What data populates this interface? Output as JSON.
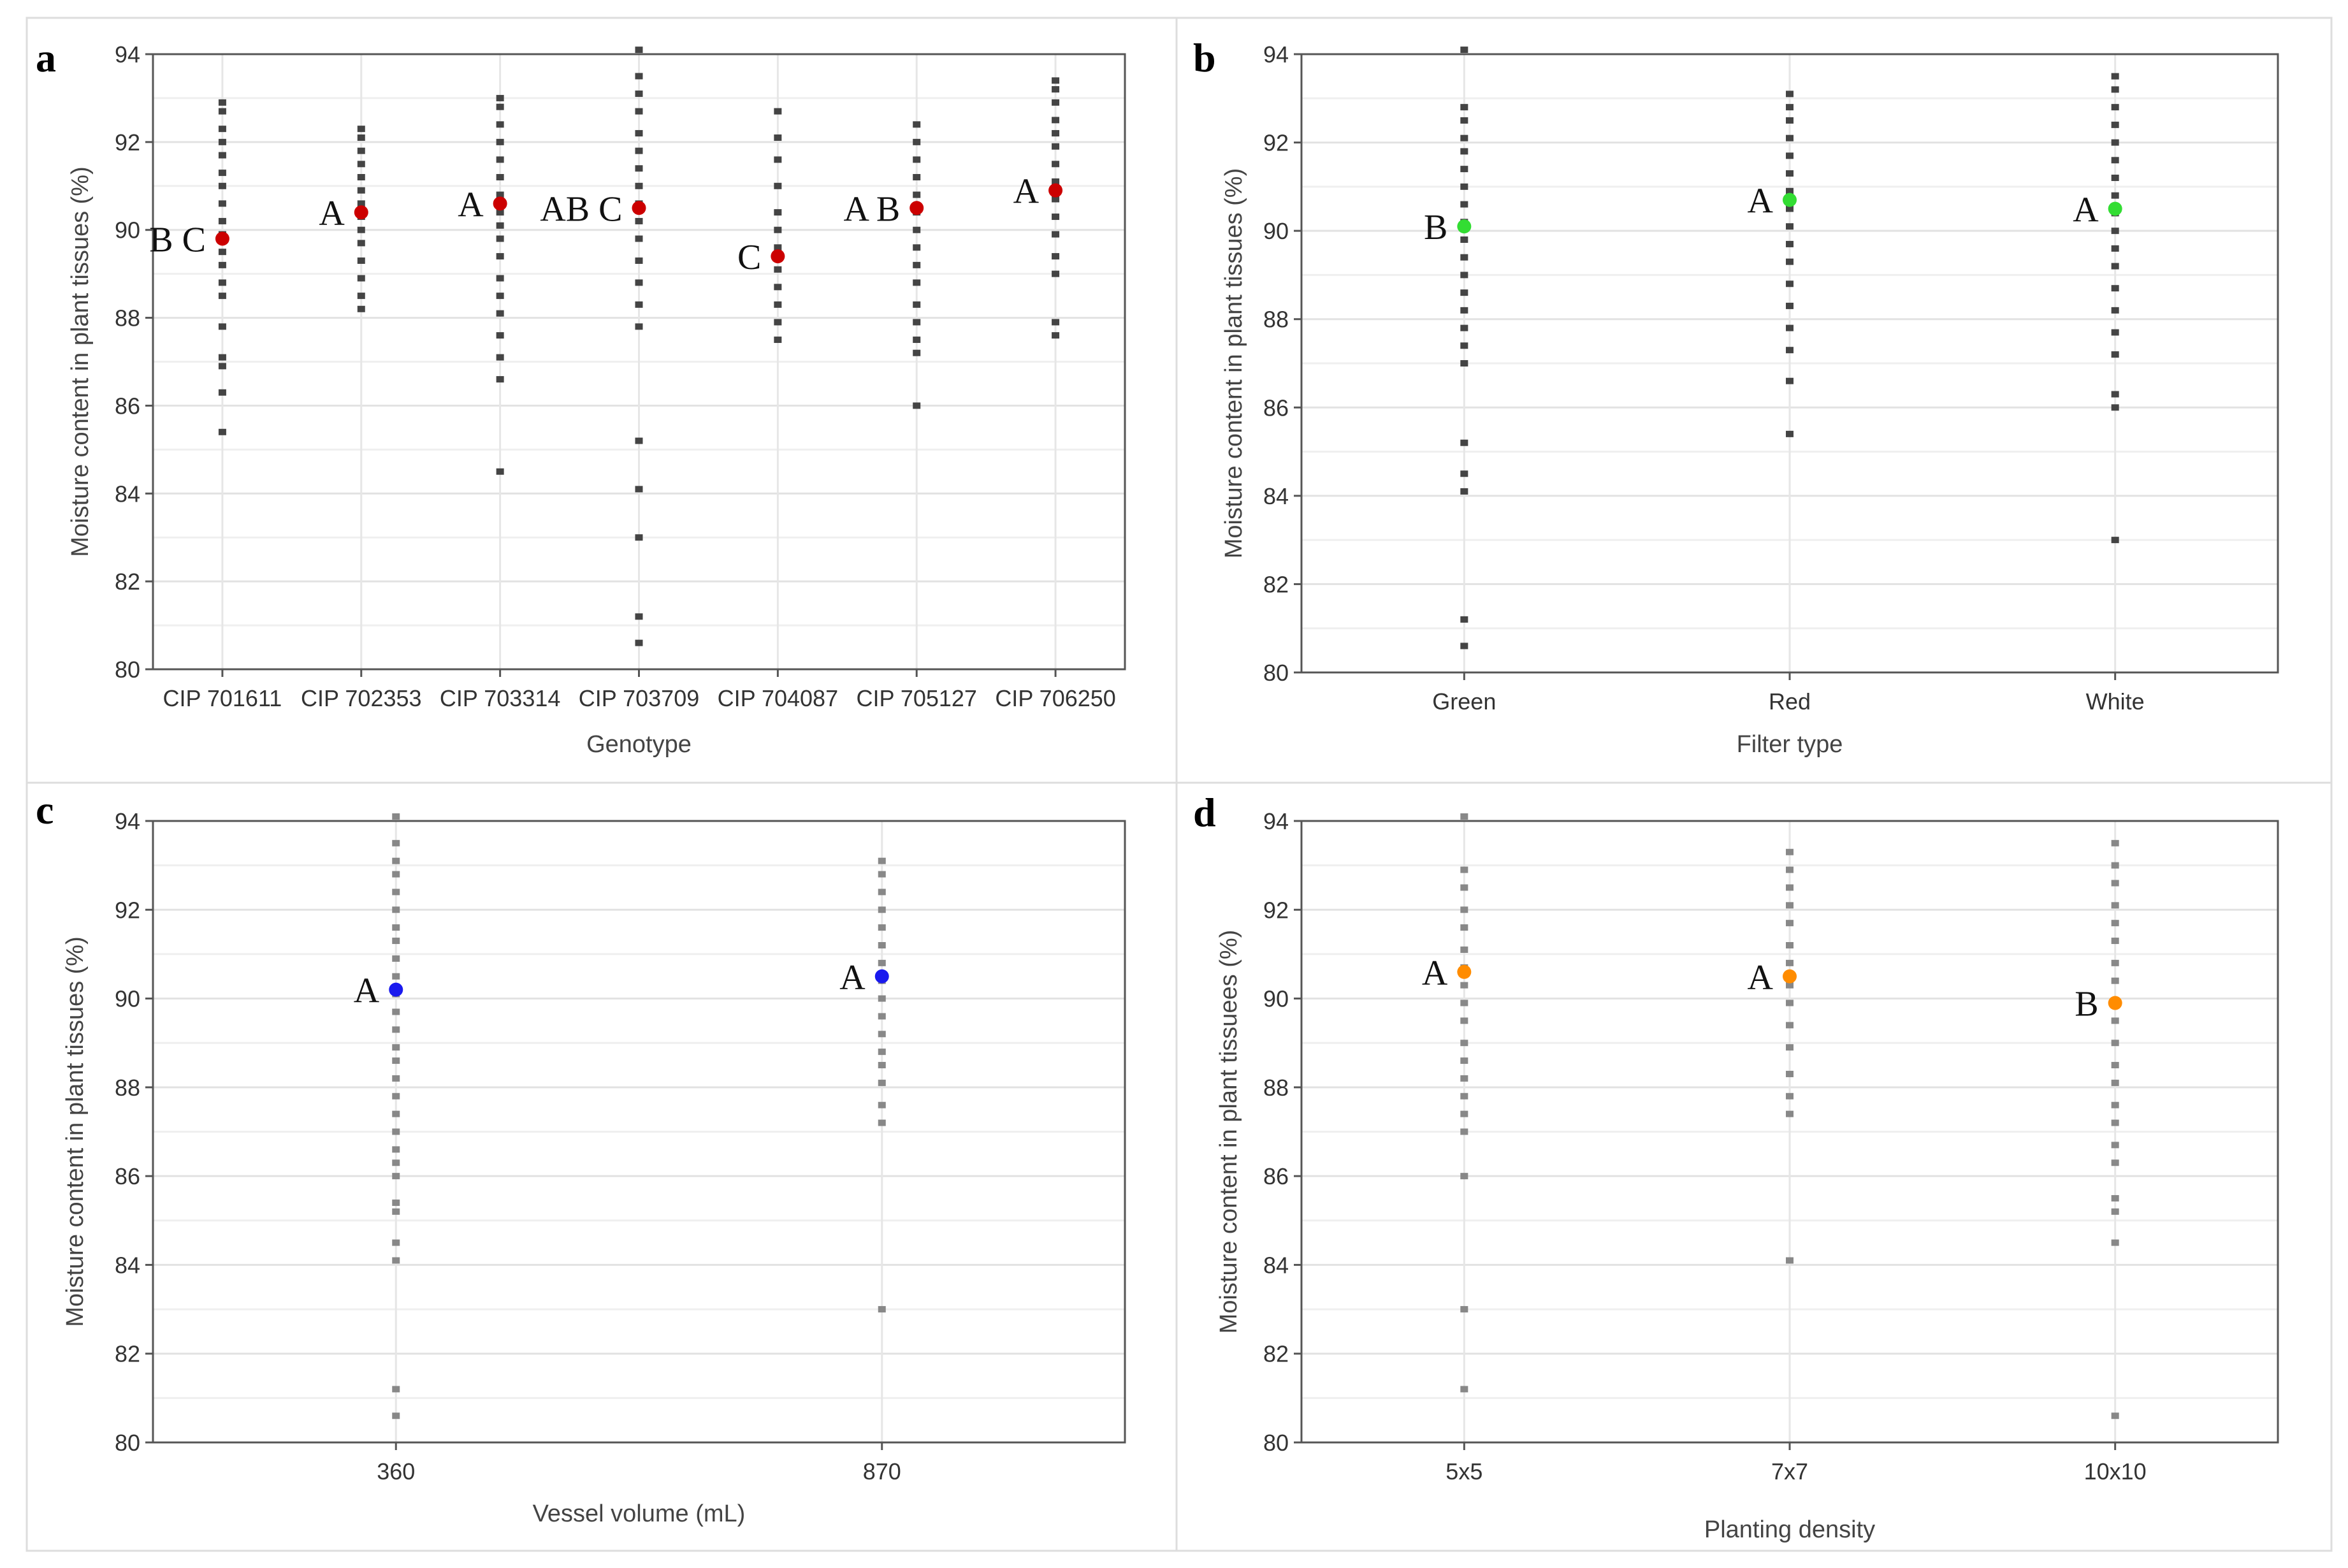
{
  "chart_data": [
    {
      "type": "scatter",
      "panel": "a",
      "xlabel": "Genotype",
      "ylabel": "Moisture content in plant tissues (%)",
      "ylim": [
        80,
        94
      ],
      "yticks": [
        80,
        82,
        84,
        86,
        88,
        90,
        92,
        94
      ],
      "grid": true,
      "mean_color": "#cc0000",
      "point_color": "#444444",
      "categories": [
        "CIP 701611",
        "CIP 702353",
        "CIP 703314",
        "CIP 703709",
        "CIP 704087",
        "CIP 705127",
        "CIP 706250"
      ],
      "means": [
        89.8,
        90.4,
        90.6,
        90.5,
        89.4,
        90.5,
        90.9
      ],
      "letters": [
        "B C",
        "A",
        "A",
        "AB C",
        "C",
        "A B",
        "A"
      ],
      "points": [
        [
          85.4,
          86.3,
          86.9,
          87.1,
          87.8,
          88.5,
          88.8,
          89.2,
          89.5,
          89.9,
          90.2,
          90.6,
          91.0,
          91.3,
          91.7,
          92.0,
          92.3,
          92.7,
          92.9
        ],
        [
          88.2,
          88.5,
          88.9,
          89.3,
          89.7,
          90.0,
          90.3,
          90.6,
          90.9,
          91.2,
          91.5,
          91.8,
          92.1,
          92.3
        ],
        [
          84.5,
          86.6,
          87.1,
          87.6,
          88.1,
          88.5,
          88.9,
          89.4,
          89.8,
          90.1,
          90.4,
          90.8,
          91.2,
          91.6,
          92.0,
          92.4,
          92.8,
          93.0
        ],
        [
          80.6,
          81.2,
          83.0,
          84.1,
          85.2,
          87.8,
          88.3,
          88.8,
          89.3,
          89.8,
          90.2,
          90.6,
          91.0,
          91.4,
          91.8,
          92.2,
          92.7,
          93.1,
          93.5,
          94.1
        ],
        [
          87.5,
          87.9,
          88.3,
          88.7,
          89.1,
          89.6,
          90.0,
          90.4,
          91.0,
          91.6,
          92.1,
          92.7
        ],
        [
          86.0,
          87.2,
          87.5,
          87.9,
          88.3,
          88.8,
          89.2,
          89.6,
          90.0,
          90.4,
          90.8,
          91.2,
          91.6,
          92.0,
          92.4
        ],
        [
          87.6,
          87.9,
          89.0,
          89.4,
          89.9,
          90.3,
          90.7,
          91.1,
          91.5,
          91.9,
          92.2,
          92.5,
          92.9,
          93.2,
          93.4
        ]
      ]
    },
    {
      "type": "scatter",
      "panel": "b",
      "xlabel": "Filter type",
      "ylabel": "Moisture content in plant tissues (%)",
      "ylim": [
        80,
        94
      ],
      "yticks": [
        80,
        82,
        84,
        86,
        88,
        90,
        92,
        94
      ],
      "grid": true,
      "mean_color": "#33dd33",
      "point_color": "#444444",
      "categories": [
        "Green",
        "Red",
        "White"
      ],
      "means": [
        90.1,
        90.7,
        90.5
      ],
      "letters": [
        "B",
        "A",
        "A"
      ],
      "points": [
        [
          80.6,
          81.2,
          84.1,
          84.5,
          85.2,
          87.0,
          87.4,
          87.8,
          88.2,
          88.6,
          89.0,
          89.4,
          89.8,
          90.2,
          90.6,
          91.0,
          91.4,
          91.8,
          92.1,
          92.5,
          92.8,
          94.1
        ],
        [
          85.4,
          86.6,
          87.3,
          87.8,
          88.3,
          88.8,
          89.3,
          89.7,
          90.1,
          90.5,
          90.9,
          91.3,
          91.7,
          92.1,
          92.5,
          92.8,
          93.1
        ],
        [
          83.0,
          86.0,
          86.3,
          87.2,
          87.7,
          88.2,
          88.7,
          89.2,
          89.6,
          90.0,
          90.4,
          90.8,
          91.2,
          91.6,
          92.0,
          92.4,
          92.8,
          93.2,
          93.5
        ]
      ]
    },
    {
      "type": "scatter",
      "panel": "c",
      "xlabel": "Vessel volume (mL)",
      "ylabel": "Moisture content in plant tissues (%)",
      "ylim": [
        80,
        94
      ],
      "yticks": [
        80,
        82,
        84,
        86,
        88,
        90,
        92,
        94
      ],
      "grid": true,
      "mean_color": "#1a1aee",
      "point_color": "#888888",
      "categories": [
        "360",
        "870"
      ],
      "means": [
        90.2,
        90.5
      ],
      "letters": [
        "A",
        "A"
      ],
      "points": [
        [
          80.6,
          81.2,
          84.1,
          84.5,
          85.2,
          85.4,
          86.0,
          86.3,
          86.6,
          87.0,
          87.4,
          87.8,
          88.2,
          88.6,
          88.9,
          89.3,
          89.7,
          90.1,
          90.5,
          90.9,
          91.3,
          91.6,
          92.0,
          92.4,
          92.8,
          93.1,
          93.5,
          94.1
        ],
        [
          83.0,
          87.2,
          87.6,
          88.1,
          88.5,
          88.8,
          89.2,
          89.6,
          90.0,
          90.4,
          90.8,
          91.2,
          91.6,
          92.0,
          92.4,
          92.8,
          93.1
        ]
      ]
    },
    {
      "type": "scatter",
      "panel": "d",
      "xlabel": "Planting density",
      "ylabel": "Moisture content in plant tissuees (%)",
      "ylim": [
        80,
        94
      ],
      "yticks": [
        80,
        82,
        84,
        86,
        88,
        90,
        92,
        94
      ],
      "grid": true,
      "mean_color": "#ff8c00",
      "point_color": "#888888",
      "categories": [
        "5x5",
        "7x7",
        "10x10"
      ],
      "means": [
        90.6,
        90.5,
        89.9
      ],
      "letters": [
        "A",
        "A",
        "B"
      ],
      "points": [
        [
          81.2,
          83.0,
          86.0,
          87.0,
          87.4,
          87.8,
          88.2,
          88.6,
          89.0,
          89.5,
          89.9,
          90.3,
          90.7,
          91.1,
          91.6,
          92.0,
          92.5,
          92.9,
          94.1
        ],
        [
          84.1,
          87.4,
          87.8,
          88.3,
          88.9,
          89.4,
          89.9,
          90.3,
          90.8,
          91.2,
          91.7,
          92.1,
          92.5,
          92.9,
          93.3
        ],
        [
          80.6,
          84.5,
          85.2,
          85.5,
          86.3,
          86.7,
          87.2,
          87.6,
          88.1,
          88.5,
          89.0,
          89.5,
          89.9,
          90.4,
          90.8,
          91.3,
          91.7,
          92.1,
          92.6,
          93.0,
          93.5
        ]
      ]
    }
  ]
}
